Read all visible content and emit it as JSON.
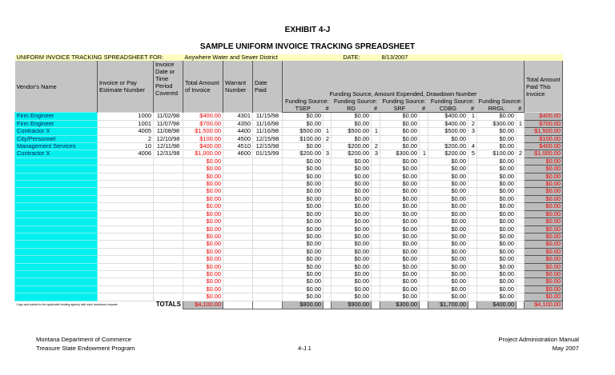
{
  "exhibit": "EXHIBIT 4-J",
  "subtitle": "SAMPLE UNIFORM INVOICE TRACKING SPREADSHEET",
  "sheet": {
    "for_label": "UNIFORM INVOICE TRACKING SPREADSHEET FOR:",
    "for_value": "Anywhere Water and Sewer District",
    "date_label": "DATE:",
    "date_value": "8/13/2007"
  },
  "headers": {
    "vendor": "Vendor's Name",
    "invoice": "Invoice or Pay Estimate Number",
    "period": "Invoice Date or Time Period Covered",
    "total": "Total Amount of Invoice",
    "warrant": "Warrant Number",
    "date_paid": "Date Paid",
    "funding": "Funding Source, Amount Expended, Drawdown Number",
    "fs_label": "Funding Source:",
    "sources": [
      "TSEP",
      "RD",
      "SRF",
      "CDBG",
      "RRGL"
    ],
    "num": "#",
    "total_paid": "Total Amount Paid This Invoice"
  },
  "rows": [
    [
      "Firm Engineer",
      "1000",
      "11/02/98",
      "$400.00",
      "4301",
      "11/15/98",
      "$0.00",
      "",
      "$0.00",
      "",
      "$0.00",
      "",
      "$400.00",
      "1",
      "$0.00",
      "",
      "$400.00"
    ],
    [
      "Firm Engineer",
      "1001",
      "11/07/98",
      "$700.00",
      "4350",
      "11/16/98",
      "$0.00",
      "",
      "$0.00",
      "",
      "$0.00",
      "",
      "$400.00",
      "2",
      "$300.00",
      "1",
      "$700.00"
    ],
    [
      "Contractor X",
      "4005",
      "11/08/98",
      "$1,500.00",
      "4400",
      "11/16/98",
      "$500.00",
      "1",
      "$500.00",
      "1",
      "$0.00",
      "",
      "$500.00",
      "3",
      "$0.00",
      "",
      "$1,500.00"
    ],
    [
      "City/Personnel",
      "2",
      "12/10/98",
      "$100.00",
      "4500",
      "12/15/98",
      "$100.00",
      "2",
      "$0.00",
      "",
      "$0.00",
      "",
      "$0.00",
      "",
      "$0.00",
      "",
      "$100.00"
    ],
    [
      "Management Services",
      "10",
      "12/11/98",
      "$400.00",
      "4510",
      "12/15/98",
      "$0.00",
      "",
      "$200.00",
      "2",
      "$0.00",
      "",
      "$200.00",
      "4",
      "$0.00",
      "",
      "$400.00"
    ],
    [
      "Contractor X",
      "4006",
      "12/31/98",
      "$1,000.00",
      "4600",
      "01/15/99",
      "$200.00",
      "3",
      "$200.00",
      "3",
      "$300.00",
      "1",
      "$200.00",
      "5",
      "$100.00",
      "2",
      "$1,000.00"
    ]
  ],
  "empty_row": [
    "",
    "",
    "",
    "$0.00",
    "",
    "",
    "$0.00",
    "",
    "$0.00",
    "",
    "$0.00",
    "",
    "$0.00",
    "",
    "$0.00",
    "",
    "$0.00"
  ],
  "empty_row_count": 19,
  "totals": {
    "note": "Copy and submit to the applicable funding agency with each drawdown request.",
    "label": "TOTALS",
    "invoice_total": "$4,100.00",
    "sources": [
      "$800.00",
      "$900.00",
      "$300.00",
      "$1,700.00",
      "$400.00"
    ],
    "paid_total": "$4,100.00"
  },
  "footer": {
    "left1": "Montana Department of Commerce",
    "left2": "Treasure State Endowment Program",
    "center": "4-J.1",
    "right1": "Project Administration Manual",
    "right2": "May 2007"
  },
  "colors": {
    "vendor_fill": "#00f0f0",
    "header_fill": "#c4c4c4",
    "title_fill": "#fefec0",
    "amount_red": "#e00000"
  }
}
